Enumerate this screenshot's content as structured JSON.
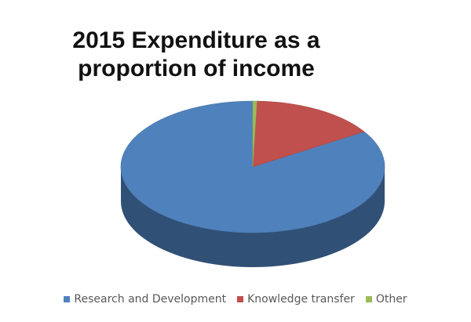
{
  "chart_data": {
    "type": "pie",
    "title": "2015 Expenditure as a proportion of income",
    "categories": [
      "Research and Development",
      "Knowledge transfer",
      "Other"
    ],
    "values": [
      84,
      15.5,
      0.5
    ],
    "unit": "percent (estimated)",
    "style": "3d",
    "legend": "bottom",
    "colors": [
      "#4f81bd",
      "#c0504d",
      "#9bbb59"
    ]
  }
}
